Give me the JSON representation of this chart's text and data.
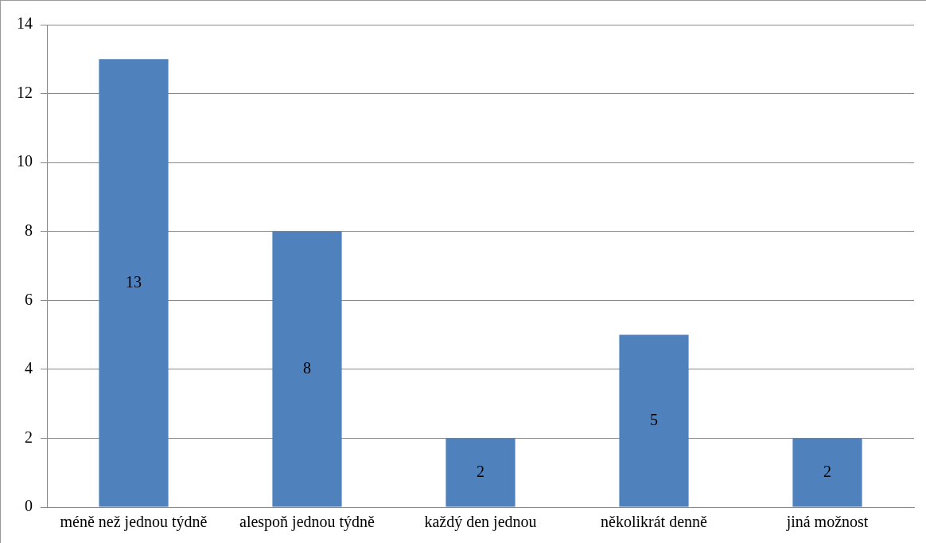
{
  "chart_data": {
    "type": "bar",
    "categories": [
      "méně než jednou týdně",
      "alespoň jednou týdně",
      "každý den jednou",
      "několikrát denně",
      "jiná možnost"
    ],
    "values": [
      13,
      8,
      2,
      5,
      2
    ],
    "color": "#4f81bd",
    "ylim": [
      0,
      14
    ],
    "yticks": [
      0,
      2,
      4,
      6,
      8,
      10,
      12,
      14
    ],
    "grid": "y",
    "legend": false,
    "data_labels": true
  }
}
